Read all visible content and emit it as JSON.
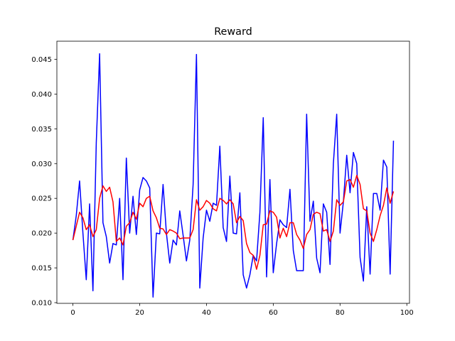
{
  "chart_data": {
    "type": "line",
    "title": "Reward",
    "xlabel": "",
    "ylabel": "",
    "xlim": [
      -4.8,
      100.8
    ],
    "ylim": [
      0.0099,
      0.0476
    ],
    "x_ticks": [
      0,
      20,
      40,
      60,
      80,
      100
    ],
    "x_tick_labels": [
      "0",
      "20",
      "40",
      "60",
      "80",
      "100"
    ],
    "y_ticks": [
      0.01,
      0.015,
      0.02,
      0.025,
      0.03,
      0.035,
      0.04,
      0.045
    ],
    "y_tick_labels": [
      "0.010",
      "0.015",
      "0.020",
      "0.025",
      "0.030",
      "0.035",
      "0.040",
      "0.045"
    ],
    "grid": false,
    "legend": "none",
    "x": [
      0,
      1,
      2,
      3,
      4,
      5,
      6,
      7,
      8,
      9,
      10,
      11,
      12,
      13,
      14,
      15,
      16,
      17,
      18,
      19,
      20,
      21,
      22,
      23,
      24,
      25,
      26,
      27,
      28,
      29,
      30,
      31,
      32,
      33,
      34,
      35,
      36,
      37,
      38,
      39,
      40,
      41,
      42,
      43,
      44,
      45,
      46,
      47,
      48,
      49,
      50,
      51,
      52,
      53,
      54,
      55,
      56,
      57,
      58,
      59,
      60,
      61,
      62,
      63,
      64,
      65,
      66,
      67,
      68,
      69,
      70,
      71,
      72,
      73,
      74,
      75,
      76,
      77,
      78,
      79,
      80,
      81,
      82,
      83,
      84,
      85,
      86,
      87,
      88,
      89,
      90,
      91,
      92,
      93,
      94,
      95,
      96
    ],
    "series": [
      {
        "color": "#0000ff",
        "values": [
          0.019,
          0.0225,
          0.0275,
          0.02,
          0.0133,
          0.0242,
          0.0117,
          0.033,
          0.0458,
          0.0215,
          0.0195,
          0.0157,
          0.0185,
          0.0183,
          0.025,
          0.0133,
          0.0308,
          0.02,
          0.0253,
          0.0198,
          0.0262,
          0.028,
          0.0275,
          0.0265,
          0.0108,
          0.02,
          0.0199,
          0.027,
          0.02,
          0.0157,
          0.019,
          0.0183,
          0.0232,
          0.0197,
          0.016,
          0.019,
          0.027,
          0.0457,
          0.0121,
          0.0193,
          0.0233,
          0.0217,
          0.0243,
          0.024,
          0.0325,
          0.0208,
          0.0188,
          0.0282,
          0.02,
          0.0199,
          0.0258,
          0.014,
          0.0121,
          0.014,
          0.0168,
          0.016,
          0.023,
          0.0366,
          0.0137,
          0.0277,
          0.0143,
          0.0185,
          0.0219,
          0.0212,
          0.0208,
          0.0263,
          0.0175,
          0.0146,
          0.0146,
          0.0146,
          0.0371,
          0.0217,
          0.0246,
          0.0164,
          0.0143,
          0.0242,
          0.023,
          0.0155,
          0.03,
          0.0371,
          0.02,
          0.0245,
          0.0312,
          0.0258,
          0.0316,
          0.03,
          0.0165,
          0.0131,
          0.0238,
          0.0141,
          0.0257,
          0.0257,
          0.0233,
          0.0305,
          0.0295,
          0.0141,
          0.0333
        ]
      },
      {
        "color": "#ff0000",
        "values": [
          0.019,
          0.021,
          0.023,
          0.0222,
          0.0205,
          0.0212,
          0.0195,
          0.0205,
          0.025,
          0.0268,
          0.026,
          0.0266,
          0.0245,
          0.0188,
          0.0193,
          0.0183,
          0.021,
          0.0215,
          0.023,
          0.022,
          0.0243,
          0.0238,
          0.025,
          0.0253,
          0.0232,
          0.0222,
          0.0207,
          0.0206,
          0.0198,
          0.0205,
          0.0203,
          0.02,
          0.0192,
          0.0193,
          0.0193,
          0.0193,
          0.0205,
          0.0248,
          0.0233,
          0.0238,
          0.0247,
          0.0243,
          0.0235,
          0.0232,
          0.025,
          0.0247,
          0.0242,
          0.0248,
          0.0242,
          0.0215,
          0.0224,
          0.0218,
          0.0185,
          0.0172,
          0.0168,
          0.0148,
          0.0168,
          0.0212,
          0.0213,
          0.0232,
          0.023,
          0.0223,
          0.0193,
          0.0207,
          0.0195,
          0.0215,
          0.0215,
          0.0198,
          0.019,
          0.0178,
          0.0198,
          0.0205,
          0.0227,
          0.023,
          0.0228,
          0.0203,
          0.0205,
          0.0188,
          0.0203,
          0.0248,
          0.024,
          0.0245,
          0.0275,
          0.0277,
          0.0266,
          0.0283,
          0.027,
          0.0235,
          0.0232,
          0.02,
          0.0188,
          0.0205,
          0.0225,
          0.024,
          0.0265,
          0.0243,
          0.026
        ]
      }
    ]
  }
}
